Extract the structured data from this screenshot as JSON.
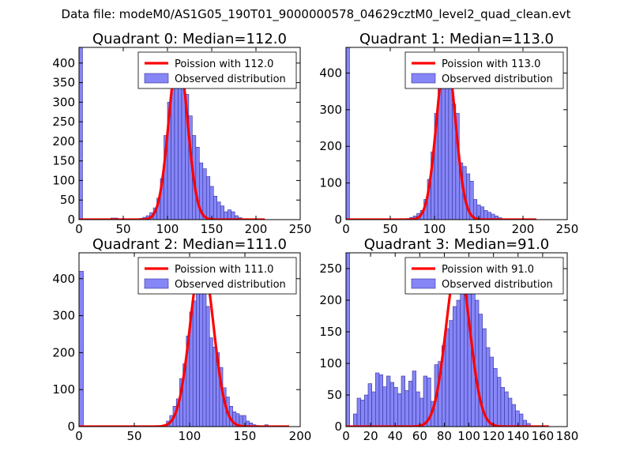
{
  "figure": {
    "suptitle": "Data file: modeM0/AS1G05_190T01_9000000578_04629cztM0_level2_quad_clean.evt"
  },
  "chart_data": [
    {
      "type": "bar",
      "title": "Quadrant 0: Median=112.0",
      "xlim": [
        0,
        250
      ],
      "ylim": [
        0,
        440
      ],
      "xticks": [
        0,
        50,
        100,
        150,
        200,
        250
      ],
      "yticks": [
        0,
        50,
        100,
        150,
        200,
        250,
        300,
        350,
        400
      ],
      "legend_position": "upper-right",
      "legend": [
        "Poission with 112.0",
        "Observed distribution"
      ],
      "bins": [
        [
          0,
          4,
          440
        ],
        [
          36,
          44,
          4
        ],
        [
          68,
          72,
          3
        ],
        [
          72,
          76,
          6
        ],
        [
          76,
          80,
          10
        ],
        [
          80,
          84,
          18
        ],
        [
          84,
          88,
          30
        ],
        [
          88,
          92,
          55
        ],
        [
          92,
          96,
          105
        ],
        [
          96,
          100,
          215
        ],
        [
          100,
          104,
          300
        ],
        [
          104,
          108,
          390
        ],
        [
          108,
          112,
          420
        ],
        [
          112,
          116,
          415
        ],
        [
          116,
          120,
          380
        ],
        [
          120,
          124,
          320
        ],
        [
          124,
          128,
          265
        ],
        [
          128,
          132,
          215
        ],
        [
          132,
          136,
          185
        ],
        [
          136,
          140,
          145
        ],
        [
          140,
          144,
          130
        ],
        [
          144,
          148,
          110
        ],
        [
          148,
          152,
          85
        ],
        [
          152,
          156,
          60
        ],
        [
          156,
          160,
          45
        ],
        [
          160,
          164,
          35
        ],
        [
          164,
          168,
          20
        ],
        [
          168,
          172,
          25
        ],
        [
          172,
          176,
          20
        ],
        [
          176,
          180,
          10
        ],
        [
          180,
          184,
          5
        ]
      ],
      "fit": {
        "label": "Poission with 112.0",
        "mean": 112.0,
        "x_range": [
          0,
          210
        ],
        "peak": 420
      }
    },
    {
      "type": "bar",
      "title": "Quadrant 1: Median=113.0",
      "xlim": [
        0,
        250
      ],
      "ylim": [
        0,
        470
      ],
      "xticks": [
        0,
        50,
        100,
        150,
        200,
        250
      ],
      "yticks": [
        0,
        100,
        200,
        300,
        400
      ],
      "legend_position": "upper-right",
      "legend": [
        "Poission with 113.0",
        "Observed distribution"
      ],
      "bins": [
        [
          0,
          4,
          470
        ],
        [
          68,
          72,
          3
        ],
        [
          72,
          76,
          6
        ],
        [
          76,
          80,
          10
        ],
        [
          80,
          84,
          17
        ],
        [
          84,
          88,
          25
        ],
        [
          88,
          92,
          55
        ],
        [
          92,
          96,
          110
        ],
        [
          96,
          100,
          185
        ],
        [
          100,
          104,
          290
        ],
        [
          104,
          108,
          365
        ],
        [
          108,
          112,
          440
        ],
        [
          112,
          116,
          430
        ],
        [
          116,
          120,
          370
        ],
        [
          120,
          124,
          315
        ],
        [
          124,
          128,
          290
        ],
        [
          128,
          132,
          155
        ],
        [
          132,
          136,
          145
        ],
        [
          136,
          140,
          125
        ],
        [
          140,
          144,
          105
        ],
        [
          144,
          148,
          55
        ],
        [
          148,
          152,
          40
        ],
        [
          152,
          156,
          35
        ],
        [
          156,
          160,
          25
        ],
        [
          160,
          164,
          20
        ],
        [
          164,
          168,
          15
        ],
        [
          168,
          172,
          10
        ],
        [
          172,
          176,
          5
        ]
      ],
      "fit": {
        "label": "Poission with 113.0",
        "mean": 113.0,
        "x_range": [
          0,
          215
        ],
        "peak": 450
      }
    },
    {
      "type": "bar",
      "title": "Quadrant 2: Median=111.0",
      "xlim": [
        0,
        200
      ],
      "ylim": [
        0,
        470
      ],
      "xticks": [
        0,
        50,
        100,
        150,
        200
      ],
      "yticks": [
        0,
        100,
        200,
        300,
        400
      ],
      "legend_position": "upper-right",
      "legend": [
        "Poission with 111.0",
        "Observed distribution"
      ],
      "bins": [
        [
          0,
          4,
          420
        ],
        [
          76,
          79,
          5
        ],
        [
          79,
          82,
          15
        ],
        [
          82,
          85,
          30
        ],
        [
          85,
          88,
          55
        ],
        [
          88,
          91,
          75
        ],
        [
          91,
          94,
          130
        ],
        [
          94,
          97,
          170
        ],
        [
          97,
          100,
          245
        ],
        [
          100,
          103,
          310
        ],
        [
          103,
          106,
          340
        ],
        [
          106,
          109,
          430
        ],
        [
          109,
          112,
          455
        ],
        [
          112,
          115,
          400
        ],
        [
          115,
          118,
          325
        ],
        [
          118,
          121,
          240
        ],
        [
          121,
          124,
          215
        ],
        [
          124,
          127,
          200
        ],
        [
          127,
          130,
          160
        ],
        [
          130,
          133,
          105
        ],
        [
          133,
          136,
          80
        ],
        [
          136,
          139,
          55
        ],
        [
          139,
          142,
          40
        ],
        [
          142,
          145,
          35
        ],
        [
          145,
          148,
          30
        ],
        [
          148,
          151,
          30
        ],
        [
          151,
          154,
          15
        ],
        [
          154,
          157,
          10
        ],
        [
          157,
          160,
          5
        ],
        [
          160,
          163,
          3
        ],
        [
          168,
          171,
          5
        ]
      ],
      "fit": {
        "label": "Poission with 111.0",
        "mean": 111.0,
        "x_range": [
          0,
          190
        ],
        "peak": 455
      }
    },
    {
      "type": "bar",
      "title": "Quadrant 3: Median=91.0",
      "xlim": [
        0,
        180
      ],
      "ylim": [
        0,
        275
      ],
      "xticks": [
        0,
        20,
        40,
        60,
        80,
        100,
        120,
        140,
        160,
        180
      ],
      "yticks": [
        0,
        50,
        100,
        150,
        200,
        250
      ],
      "legend_position": "upper-right",
      "legend": [
        "Poission with 91.0",
        "Observed distribution"
      ],
      "bins": [
        [
          0,
          3,
          275
        ],
        [
          6,
          9,
          20
        ],
        [
          9,
          12,
          45
        ],
        [
          12,
          15,
          42
        ],
        [
          15,
          18,
          50
        ],
        [
          18,
          21,
          68
        ],
        [
          21,
          24,
          55
        ],
        [
          24,
          27,
          85
        ],
        [
          27,
          30,
          82
        ],
        [
          30,
          33,
          63
        ],
        [
          33,
          36,
          80
        ],
        [
          36,
          39,
          70
        ],
        [
          39,
          42,
          62
        ],
        [
          42,
          45,
          52
        ],
        [
          45,
          48,
          80
        ],
        [
          48,
          51,
          57
        ],
        [
          51,
          54,
          72
        ],
        [
          54,
          57,
          88
        ],
        [
          57,
          60,
          55
        ],
        [
          60,
          63,
          45
        ],
        [
          63,
          66,
          80
        ],
        [
          66,
          69,
          77
        ],
        [
          69,
          72,
          40
        ],
        [
          72,
          75,
          98
        ],
        [
          75,
          78,
          103
        ],
        [
          78,
          81,
          128
        ],
        [
          81,
          84,
          155
        ],
        [
          84,
          87,
          168
        ],
        [
          87,
          90,
          190
        ],
        [
          90,
          93,
          200
        ],
        [
          93,
          96,
          235
        ],
        [
          96,
          99,
          250
        ],
        [
          99,
          102,
          262
        ],
        [
          102,
          105,
          238
        ],
        [
          105,
          108,
          200
        ],
        [
          108,
          111,
          178
        ],
        [
          111,
          114,
          155
        ],
        [
          114,
          117,
          125
        ],
        [
          117,
          120,
          110
        ],
        [
          120,
          123,
          92
        ],
        [
          123,
          126,
          78
        ],
        [
          126,
          129,
          62
        ],
        [
          129,
          132,
          55
        ],
        [
          132,
          135,
          45
        ],
        [
          135,
          138,
          35
        ],
        [
          138,
          141,
          25
        ],
        [
          141,
          144,
          20
        ],
        [
          144,
          147,
          10
        ],
        [
          147,
          150,
          5
        ]
      ],
      "fit": {
        "label": "Poission with 91.0",
        "mean": 91.0,
        "x_range": [
          0,
          165
        ],
        "peak": 262
      }
    }
  ]
}
